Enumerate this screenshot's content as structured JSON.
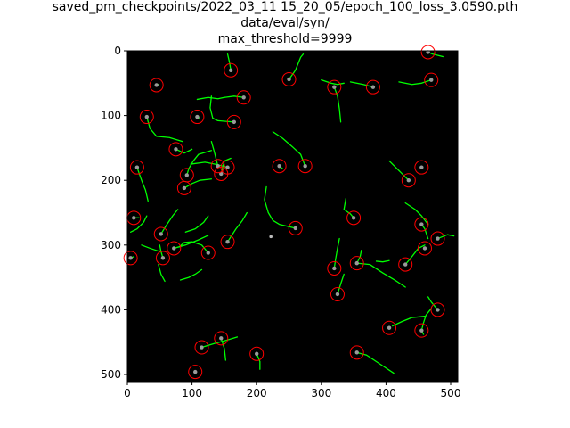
{
  "figure": {
    "title_lines": [
      "saved_pm_checkpoints/2022_03_11 15_20_05/epoch_100_loss_3.0590.pth",
      "data/eval/syn/",
      "max_threshold=9999"
    ]
  },
  "chart_data": {
    "type": "image",
    "xlim": [
      0,
      511
    ],
    "ylim": [
      511,
      0
    ],
    "y_inverted": true,
    "xticks": [
      0,
      100,
      200,
      300,
      400,
      500
    ],
    "yticks": [
      0,
      100,
      200,
      300,
      400,
      500
    ],
    "background_color": "#000000",
    "track_color": "#00ff00",
    "circle_color": "#ff0000",
    "detections": [
      [
        465,
        2
      ],
      [
        160,
        30
      ],
      [
        45,
        53
      ],
      [
        250,
        44
      ],
      [
        320,
        56
      ],
      [
        380,
        56
      ],
      [
        470,
        45
      ],
      [
        180,
        72
      ],
      [
        30,
        102
      ],
      [
        108,
        102
      ],
      [
        165,
        110
      ],
      [
        15,
        180
      ],
      [
        75,
        152
      ],
      [
        155,
        180
      ],
      [
        140,
        178
      ],
      [
        145,
        190
      ],
      [
        92,
        192
      ],
      [
        88,
        212
      ],
      [
        235,
        178
      ],
      [
        275,
        178
      ],
      [
        455,
        180
      ],
      [
        435,
        200
      ],
      [
        10,
        258
      ],
      [
        52,
        283
      ],
      [
        350,
        258
      ],
      [
        455,
        268
      ],
      [
        480,
        290
      ],
      [
        260,
        274
      ],
      [
        155,
        295
      ],
      [
        72,
        305
      ],
      [
        125,
        312
      ],
      [
        5,
        320
      ],
      [
        55,
        320
      ],
      [
        460,
        305
      ],
      [
        355,
        328
      ],
      [
        320,
        336
      ],
      [
        430,
        330
      ],
      [
        325,
        376
      ],
      [
        480,
        400
      ],
      [
        405,
        428
      ],
      [
        455,
        432
      ],
      [
        145,
        444
      ],
      [
        115,
        458
      ],
      [
        200,
        468
      ],
      [
        355,
        466
      ],
      [
        105,
        496
      ]
    ],
    "tracks": [
      [
        [
          465,
          2
        ],
        [
          472,
          5
        ],
        [
          488,
          9
        ]
      ],
      [
        [
          160,
          30
        ],
        [
          158,
          18
        ],
        [
          155,
          5
        ]
      ],
      [
        [
          45,
          53
        ],
        [
          48,
          52
        ]
      ],
      [
        [
          250,
          44
        ],
        [
          260,
          30
        ],
        [
          268,
          10
        ],
        [
          272,
          5
        ]
      ],
      [
        [
          320,
          56
        ],
        [
          325,
          70
        ],
        [
          328,
          90
        ],
        [
          330,
          110
        ]
      ],
      [
        [
          300,
          45
        ],
        [
          315,
          50
        ],
        [
          325,
          52
        ],
        [
          335,
          50
        ]
      ],
      [
        [
          345,
          48
        ],
        [
          365,
          52
        ],
        [
          380,
          56
        ]
      ],
      [
        [
          420,
          48
        ],
        [
          440,
          52
        ],
        [
          455,
          50
        ],
        [
          470,
          45
        ]
      ],
      [
        [
          180,
          72
        ],
        [
          165,
          70
        ],
        [
          150,
          72
        ]
      ],
      [
        [
          108,
          75
        ],
        [
          125,
          72
        ],
        [
          140,
          74
        ],
        [
          150,
          72
        ]
      ],
      [
        [
          130,
          70
        ],
        [
          128,
          88
        ],
        [
          132,
          104
        ],
        [
          140,
          108
        ],
        [
          165,
          110
        ]
      ],
      [
        [
          108,
          102
        ],
        [
          112,
          104
        ]
      ],
      [
        [
          30,
          102
        ],
        [
          35,
          120
        ],
        [
          45,
          132
        ],
        [
          65,
          134
        ],
        [
          85,
          140
        ]
      ],
      [
        [
          15,
          180
        ],
        [
          22,
          200
        ],
        [
          28,
          215
        ],
        [
          32,
          232
        ]
      ],
      [
        [
          75,
          152
        ],
        [
          88,
          158
        ],
        [
          100,
          152
        ]
      ],
      [
        [
          155,
          180
        ],
        [
          140,
          176
        ],
        [
          120,
          172
        ],
        [
          98,
          175
        ]
      ],
      [
        [
          92,
          192
        ],
        [
          95,
          182
        ],
        [
          102,
          170
        ],
        [
          110,
          160
        ],
        [
          130,
          154
        ]
      ],
      [
        [
          88,
          212
        ],
        [
          100,
          205
        ],
        [
          112,
          200
        ],
        [
          130,
          198
        ]
      ],
      [
        [
          130,
          140
        ],
        [
          135,
          158
        ],
        [
          140,
          178
        ]
      ],
      [
        [
          145,
          190
        ],
        [
          150,
          170
        ],
        [
          160,
          166
        ]
      ],
      [
        [
          225,
          125
        ],
        [
          240,
          135
        ],
        [
          255,
          148
        ],
        [
          268,
          160
        ],
        [
          275,
          178
        ]
      ],
      [
        [
          235,
          178
        ],
        [
          240,
          182
        ]
      ],
      [
        [
          455,
          180
        ]
      ],
      [
        [
          405,
          170
        ],
        [
          415,
          180
        ],
        [
          425,
          190
        ],
        [
          435,
          200
        ]
      ],
      [
        [
          10,
          258
        ],
        [
          18,
          258
        ]
      ],
      [
        [
          5,
          280
        ],
        [
          15,
          275
        ],
        [
          25,
          265
        ],
        [
          30,
          255
        ]
      ],
      [
        [
          52,
          283
        ],
        [
          60,
          270
        ],
        [
          70,
          255
        ],
        [
          78,
          245
        ]
      ],
      [
        [
          22,
          300
        ],
        [
          35,
          305
        ],
        [
          50,
          310
        ]
      ],
      [
        [
          215,
          210
        ],
        [
          212,
          230
        ],
        [
          218,
          250
        ],
        [
          225,
          262
        ],
        [
          235,
          268
        ],
        [
          260,
          274
        ]
      ],
      [
        [
          338,
          228
        ],
        [
          335,
          245
        ],
        [
          345,
          252
        ],
        [
          350,
          258
        ]
      ],
      [
        [
          430,
          235
        ],
        [
          445,
          245
        ],
        [
          455,
          255
        ],
        [
          465,
          268
        ]
      ],
      [
        [
          455,
          268
        ],
        [
          460,
          275
        ],
        [
          465,
          290
        ]
      ],
      [
        [
          480,
          290
        ],
        [
          495,
          284
        ],
        [
          505,
          286
        ]
      ],
      [
        [
          155,
          295
        ],
        [
          168,
          275
        ],
        [
          178,
          262
        ],
        [
          185,
          250
        ]
      ],
      [
        [
          72,
          305
        ],
        [
          90,
          300
        ],
        [
          110,
          292
        ],
        [
          125,
          285
        ]
      ],
      [
        [
          125,
          312
        ],
        [
          115,
          300
        ],
        [
          100,
          295
        ],
        [
          88,
          296
        ],
        [
          80,
          303
        ]
      ],
      [
        [
          125,
          255
        ],
        [
          118,
          265
        ],
        [
          105,
          275
        ],
        [
          90,
          280
        ]
      ],
      [
        [
          55,
          320
        ],
        [
          52,
          310
        ],
        [
          50,
          300
        ]
      ],
      [
        [
          5,
          320
        ],
        [
          10,
          318
        ]
      ],
      [
        [
          82,
          354
        ],
        [
          95,
          350
        ],
        [
          105,
          345
        ],
        [
          115,
          338
        ]
      ],
      [
        [
          48,
          330
        ],
        [
          52,
          345
        ],
        [
          58,
          356
        ]
      ],
      [
        [
          355,
          328
        ],
        [
          375,
          330
        ],
        [
          395,
          343
        ],
        [
          415,
          355
        ],
        [
          430,
          365
        ]
      ],
      [
        [
          385,
          325
        ],
        [
          395,
          326
        ],
        [
          405,
          324
        ]
      ],
      [
        [
          355,
          328
        ],
        [
          360,
          318
        ],
        [
          362,
          308
        ]
      ],
      [
        [
          320,
          336
        ],
        [
          322,
          322
        ],
        [
          325,
          305
        ],
        [
          328,
          290
        ]
      ],
      [
        [
          430,
          330
        ],
        [
          440,
          318
        ],
        [
          450,
          305
        ],
        [
          460,
          300
        ]
      ],
      [
        [
          325,
          376
        ],
        [
          330,
          360
        ],
        [
          335,
          345
        ]
      ],
      [
        [
          410,
          425
        ],
        [
          425,
          418
        ],
        [
          440,
          412
        ],
        [
          460,
          410
        ]
      ],
      [
        [
          480,
          400
        ],
        [
          470,
          388
        ],
        [
          465,
          380
        ]
      ],
      [
        [
          455,
          432
        ],
        [
          458,
          420
        ],
        [
          462,
          408
        ],
        [
          470,
          398
        ]
      ],
      [
        [
          455,
          432
        ],
        [
          458,
          438
        ]
      ],
      [
        [
          145,
          444
        ],
        [
          150,
          460
        ],
        [
          152,
          478
        ]
      ],
      [
        [
          115,
          458
        ],
        [
          135,
          452
        ],
        [
          150,
          448
        ],
        [
          170,
          442
        ]
      ],
      [
        [
          200,
          468
        ],
        [
          205,
          480
        ],
        [
          205,
          492
        ]
      ],
      [
        [
          355,
          466
        ],
        [
          370,
          470
        ],
        [
          385,
          480
        ],
        [
          400,
          490
        ],
        [
          412,
          498
        ]
      ],
      [
        [
          105,
          496
        ]
      ]
    ],
    "isolated_points": [
      [
        222,
        287
      ]
    ]
  }
}
